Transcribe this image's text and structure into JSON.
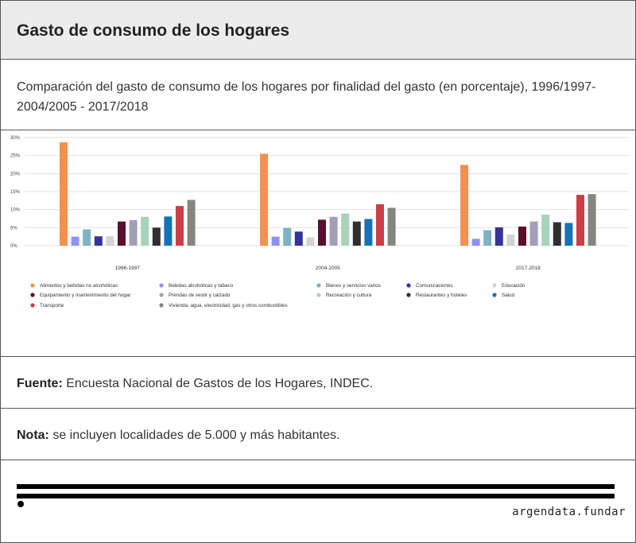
{
  "header": {
    "title": "Gasto de consumo de los hogares"
  },
  "subtitle": "Comparación del gasto de consumo de los hogares por finalidad del gasto (en porcentaje), 1996/1997-2004/2005 - 2017/2018",
  "source": {
    "label": "Fuente:",
    "text": " Encuesta Nacional de Gastos de los Hogares, INDEC."
  },
  "note": {
    "label": "Nota:",
    "text": " se incluyen localidades de 5.000 y más habitantes."
  },
  "brand": "argendata.fundar",
  "chart_data": {
    "type": "bar",
    "categories": [
      "1996-1997",
      "2004-2005",
      "2017-2018"
    ],
    "ylim": [
      0,
      30
    ],
    "yticks": [
      "0%",
      "5%",
      "10%",
      "15%",
      "20%",
      "25%",
      "30%"
    ],
    "grid": true,
    "legend_position": "bottom",
    "series": [
      {
        "name": "Alimentos y bebidas no alcohólicas",
        "color": "#f4914e",
        "values": [
          28.7,
          25.5,
          22.4
        ]
      },
      {
        "name": "Bebidas alcohólicas y tabaco",
        "color": "#8b93f5",
        "values": [
          2.5,
          2.5,
          1.9
        ]
      },
      {
        "name": "Bienes y servicios varios",
        "color": "#7db3c4",
        "values": [
          4.5,
          4.9,
          4.3
        ]
      },
      {
        "name": "Comunicaciones",
        "color": "#34339a",
        "values": [
          2.6,
          3.9,
          5.1
        ]
      },
      {
        "name": "Educación",
        "color": "#d4d2d3",
        "values": [
          2.6,
          2.3,
          3.1
        ]
      },
      {
        "name": "Equipamiento y mantenimiento del hogar",
        "color": "#5a0f2e",
        "values": [
          6.7,
          7.2,
          5.3
        ]
      },
      {
        "name": "Prendas de vestir y calzado",
        "color": "#a39fb6",
        "values": [
          7.1,
          8.0,
          6.7
        ]
      },
      {
        "name": "Recreación y cultura",
        "color": "#a6d3ba",
        "values": [
          8.0,
          8.9,
          8.6
        ]
      },
      {
        "name": "Restaurantes y hoteles",
        "color": "#2f2f2f",
        "values": [
          5.0,
          6.7,
          6.5
        ]
      },
      {
        "name": "Salud",
        "color": "#1573b5",
        "values": [
          8.1,
          7.4,
          6.3
        ]
      },
      {
        "name": "Transporte",
        "color": "#cc3d46",
        "values": [
          11.0,
          11.5,
          14.1
        ]
      },
      {
        "name": "Vivienda, agua, electricidad, gas y otros combustibles",
        "color": "#868580",
        "values": [
          12.7,
          10.5,
          14.3
        ]
      }
    ]
  }
}
